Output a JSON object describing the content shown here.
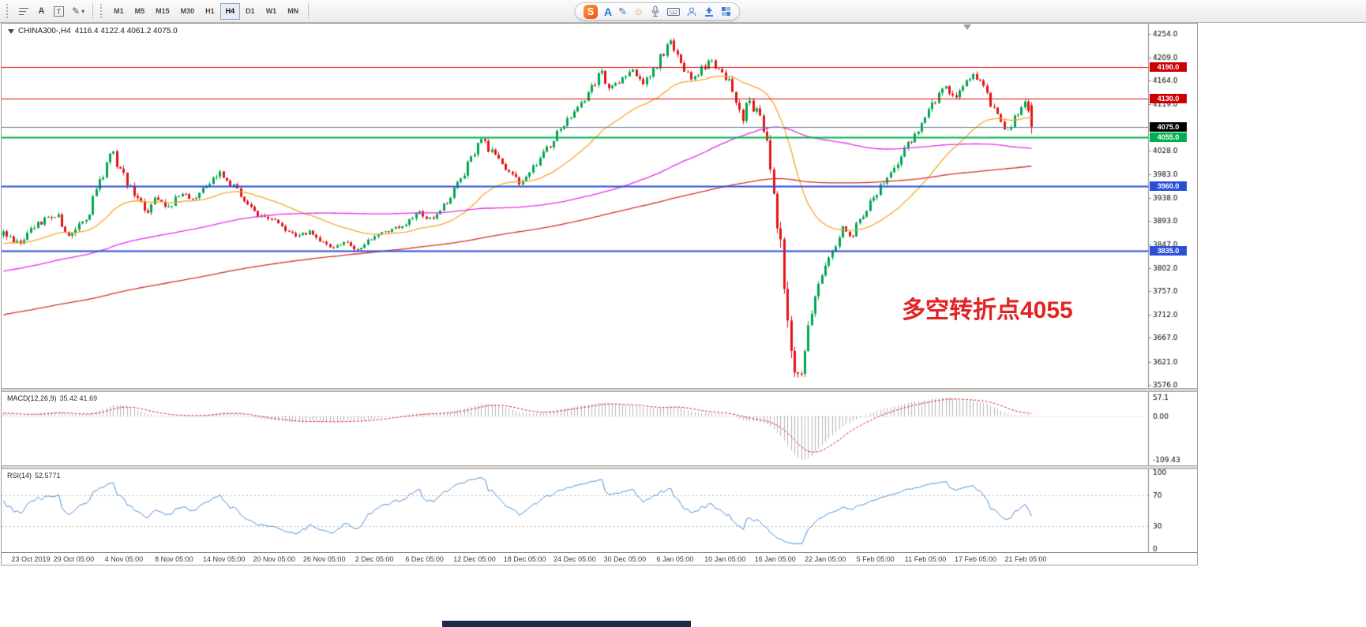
{
  "toolbar": {
    "text_tool_label": "A",
    "frame_tool_label": "T",
    "timeframes": [
      {
        "label": "M1",
        "active": false
      },
      {
        "label": "M5",
        "active": false
      },
      {
        "label": "M15",
        "active": false
      },
      {
        "label": "M30",
        "active": false
      },
      {
        "label": "H1",
        "active": false
      },
      {
        "label": "H4",
        "active": true
      },
      {
        "label": "D1",
        "active": false
      },
      {
        "label": "W1",
        "active": false
      },
      {
        "label": "MN",
        "active": false
      }
    ],
    "ime": {
      "logo_letter": "S",
      "mode_letter": "A"
    }
  },
  "chart": {
    "title_symbol": "CHINA300-,H4",
    "title_ohlc": "4116.4 4122.4 4061.2 4075.0",
    "annotation": "多空转折点4055"
  },
  "chart_data": {
    "type": "candlestick",
    "symbol": "CHINA300-",
    "timeframe": "H4",
    "open": 4116.4,
    "high": 4122.4,
    "low": 4061.2,
    "close": 4075.0,
    "up_color": "#00a650",
    "down_color": "#e01414",
    "visible_bars": 300,
    "lead_bars": 260,
    "candles_end_frac": 0.9,
    "seed": 20200224,
    "price_axis": {
      "view_max": 4274,
      "view_min": 3570,
      "ticks": [
        4254,
        4209,
        4164,
        4119,
        4028,
        3983,
        3938,
        3893,
        3847,
        3802,
        3757,
        3712,
        3667,
        3621,
        3576
      ]
    },
    "levels": [
      {
        "name": "resistance-4190",
        "price": 4190,
        "color": "#f00000",
        "tag_bg": "#cc0000",
        "width": 1
      },
      {
        "name": "resistance-4130",
        "price": 4130,
        "color": "#f00000",
        "tag_bg": "#cc0000",
        "width": 1
      },
      {
        "name": "current-price-4075",
        "price": 4075,
        "color": "#5f7d9b",
        "tag_bg": "#000000",
        "width": 1
      },
      {
        "name": "pivot-4055",
        "price": 4055,
        "color": "#00b050",
        "tag_bg": "#00b050",
        "width": 2
      },
      {
        "name": "support-3960",
        "price": 3960,
        "color": "#2c4fd8",
        "tag_bg": "#2c4fd8",
        "width": 2
      },
      {
        "name": "support-3835",
        "price": 3835,
        "color": "#2c4fd8",
        "tag_bg": "#2c4fd8",
        "width": 2
      }
    ],
    "moving_averages": [
      {
        "name": "ma-fast-orange",
        "type": "ema",
        "period": 34,
        "color": "#f7a62b"
      },
      {
        "name": "ma-mid-magenta",
        "type": "sma",
        "period": 110,
        "color": "#e52de5"
      },
      {
        "name": "ma-slow-red",
        "type": "sma",
        "period": 250,
        "color": "#d22f2f"
      }
    ],
    "x_labels": [
      "23 Oct 2019",
      "29 Oct 05:00",
      "4 Nov 05:00",
      "8 Nov 05:00",
      "14 Nov 05:00",
      "20 Nov 05:00",
      "26 Nov 05:00",
      "2 Dec 05:00",
      "6 Dec 05:00",
      "12 Dec 05:00",
      "18 Dec 05:00",
      "24 Dec 05:00",
      "30 Dec 05:00",
      "6 Jan 05:00",
      "10 Jan 05:00",
      "16 Jan 05:00",
      "22 Jan 05:00",
      "5 Feb 05:00",
      "11 Feb 05:00",
      "17 Feb 05:00",
      "21 Feb 05:00"
    ],
    "waypoints": [
      [
        -0.87,
        3560,
        9
      ],
      [
        -0.6,
        3645,
        9
      ],
      [
        -0.35,
        3725,
        9
      ],
      [
        -0.15,
        3808,
        9
      ],
      [
        -0.05,
        3852,
        8
      ],
      [
        0,
        3868,
        9
      ],
      [
        0.015,
        3850,
        8
      ],
      [
        0.034,
        3888,
        8
      ],
      [
        0.05,
        3906,
        8
      ],
      [
        0.065,
        3862,
        9
      ],
      [
        0.08,
        3896,
        9
      ],
      [
        0.094,
        3972,
        11
      ],
      [
        0.104,
        4030,
        11
      ],
      [
        0.113,
        3998,
        10
      ],
      [
        0.122,
        3962,
        9
      ],
      [
        0.133,
        3930,
        9
      ],
      [
        0.14,
        3912,
        8
      ],
      [
        0.15,
        3940,
        8
      ],
      [
        0.161,
        3918,
        8
      ],
      [
        0.172,
        3945,
        8
      ],
      [
        0.184,
        3932,
        7
      ],
      [
        0.197,
        3958,
        7
      ],
      [
        0.209,
        3985,
        8
      ],
      [
        0.222,
        3962,
        7
      ],
      [
        0.236,
        3928,
        7
      ],
      [
        0.249,
        3906,
        7
      ],
      [
        0.261,
        3898,
        6
      ],
      [
        0.273,
        3878,
        6
      ],
      [
        0.286,
        3860,
        6
      ],
      [
        0.297,
        3872,
        6
      ],
      [
        0.309,
        3850,
        6
      ],
      [
        0.32,
        3840,
        5
      ],
      [
        0.331,
        3850,
        5
      ],
      [
        0.343,
        3837,
        5
      ],
      [
        0.357,
        3858,
        6
      ],
      [
        0.371,
        3872,
        6
      ],
      [
        0.386,
        3882,
        6
      ],
      [
        0.404,
        3906,
        7
      ],
      [
        0.418,
        3898,
        6
      ],
      [
        0.432,
        3932,
        8
      ],
      [
        0.446,
        3982,
        9
      ],
      [
        0.455,
        4012,
        9
      ],
      [
        0.464,
        4046,
        9
      ],
      [
        0.476,
        4026,
        8
      ],
      [
        0.488,
        3992,
        8
      ],
      [
        0.502,
        3968,
        8
      ],
      [
        0.516,
        3996,
        7
      ],
      [
        0.529,
        4032,
        8
      ],
      [
        0.541,
        4070,
        8
      ],
      [
        0.552,
        4098,
        8
      ],
      [
        0.563,
        4120,
        7
      ],
      [
        0.572,
        4150,
        8
      ],
      [
        0.58,
        4180,
        8
      ],
      [
        0.59,
        4150,
        8
      ],
      [
        0.6,
        4165,
        8
      ],
      [
        0.612,
        4182,
        8
      ],
      [
        0.622,
        4160,
        8
      ],
      [
        0.633,
        4185,
        9
      ],
      [
        0.641,
        4215,
        9
      ],
      [
        0.648,
        4240,
        9
      ],
      [
        0.655,
        4210,
        8
      ],
      [
        0.663,
        4185,
        8
      ],
      [
        0.671,
        4165,
        8
      ],
      [
        0.68,
        4188,
        8
      ],
      [
        0.688,
        4205,
        8
      ],
      [
        0.696,
        4180,
        8
      ],
      [
        0.705,
        4162,
        9
      ],
      [
        0.712,
        4128,
        10
      ],
      [
        0.718,
        4086,
        11
      ],
      [
        0.724,
        4134,
        10
      ],
      [
        0.731,
        4108,
        11
      ],
      [
        0.737,
        4088,
        12
      ],
      [
        0.743,
        4040,
        14
      ],
      [
        0.749,
        3958,
        20
      ],
      [
        0.755,
        3848,
        24
      ],
      [
        0.76,
        3748,
        24
      ],
      [
        0.765,
        3658,
        22
      ],
      [
        0.77,
        3600,
        18
      ],
      [
        0.774,
        3585,
        14
      ],
      [
        0.779,
        3642,
        16
      ],
      [
        0.785,
        3716,
        14
      ],
      [
        0.792,
        3772,
        12
      ],
      [
        0.8,
        3806,
        10
      ],
      [
        0.808,
        3842,
        9
      ],
      [
        0.816,
        3876,
        9
      ],
      [
        0.824,
        3860,
        8
      ],
      [
        0.832,
        3892,
        8
      ],
      [
        0.84,
        3918,
        8
      ],
      [
        0.848,
        3946,
        8
      ],
      [
        0.856,
        3970,
        8
      ],
      [
        0.864,
        3990,
        8
      ],
      [
        0.872,
        4012,
        8
      ],
      [
        0.88,
        4040,
        8
      ],
      [
        0.888,
        4058,
        8
      ],
      [
        0.896,
        4092,
        9
      ],
      [
        0.906,
        4128,
        9
      ],
      [
        0.916,
        4150,
        9
      ],
      [
        0.925,
        4132,
        9
      ],
      [
        0.934,
        4158,
        9
      ],
      [
        0.944,
        4178,
        9
      ],
      [
        0.953,
        4150,
        9
      ],
      [
        0.961,
        4118,
        9
      ],
      [
        0.969,
        4086,
        9
      ],
      [
        0.977,
        4066,
        8
      ],
      [
        0.985,
        4098,
        7
      ],
      [
        0.993,
        4120,
        6
      ],
      [
        1,
        4090,
        6
      ]
    ],
    "indicators": [
      {
        "name": "MACD",
        "label": "MACD(12,26,9)",
        "values": "35.42 41.69",
        "ticks": [
          "57.1",
          "0.00",
          "-109.43"
        ],
        "fast": 12,
        "slow": 26,
        "signal": 9,
        "hist_color": "#b6b6b6",
        "signal_color": "#e02020"
      },
      {
        "name": "RSI",
        "label": "RSI(14)",
        "values": "52.5771",
        "ticks": [
          "100",
          "70",
          "30",
          "0"
        ],
        "period": 14,
        "line_color": "#4a8fd4",
        "levels": [
          70,
          30
        ]
      }
    ]
  }
}
